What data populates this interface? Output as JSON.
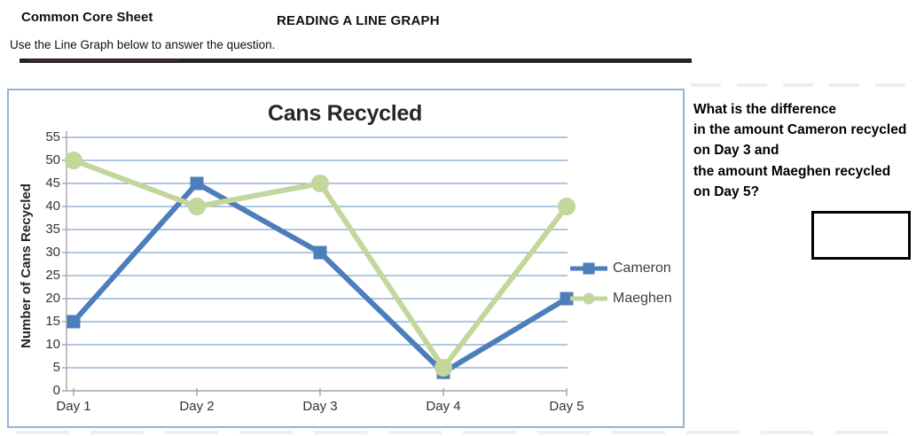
{
  "header": {
    "brand": "Common Core Sheet",
    "title": "READING A LINE GRAPH",
    "instruction": "Use the Line Graph below to answer the question."
  },
  "question": {
    "lines": [
      "What is the difference",
      "in the amount Cameron recycled",
      "on Day 3 and",
      "the amount Maeghen recycled",
      "on Day 5?"
    ]
  },
  "answer_box": {
    "value": ""
  },
  "chart_data": {
    "type": "line",
    "title": "Cans Recycled",
    "xlabel": "",
    "ylabel": "Number of Cans Recycled",
    "categories": [
      "Day 1",
      "Day 2",
      "Day 3",
      "Day 4",
      "Day 5"
    ],
    "series": [
      {
        "name": "Cameron",
        "marker": "square",
        "color": "#4C7EBB",
        "values": [
          15,
          45,
          30,
          4,
          20
        ]
      },
      {
        "name": "Maeghen",
        "marker": "circle",
        "color": "#C3D69B",
        "values": [
          50,
          40,
          45,
          5,
          40
        ]
      }
    ],
    "ylim": [
      0,
      55
    ],
    "yticks": [
      0,
      5,
      10,
      15,
      20,
      25,
      30,
      35,
      40,
      45,
      50,
      55
    ],
    "grid": true,
    "legend_position": "right",
    "colors": {
      "gridline": "#4F81BD",
      "axis": "#A6A6A6",
      "panel_border": "#95B3D7",
      "cameron": "#4C7EBB",
      "maeghen": "#C3D69B"
    }
  }
}
